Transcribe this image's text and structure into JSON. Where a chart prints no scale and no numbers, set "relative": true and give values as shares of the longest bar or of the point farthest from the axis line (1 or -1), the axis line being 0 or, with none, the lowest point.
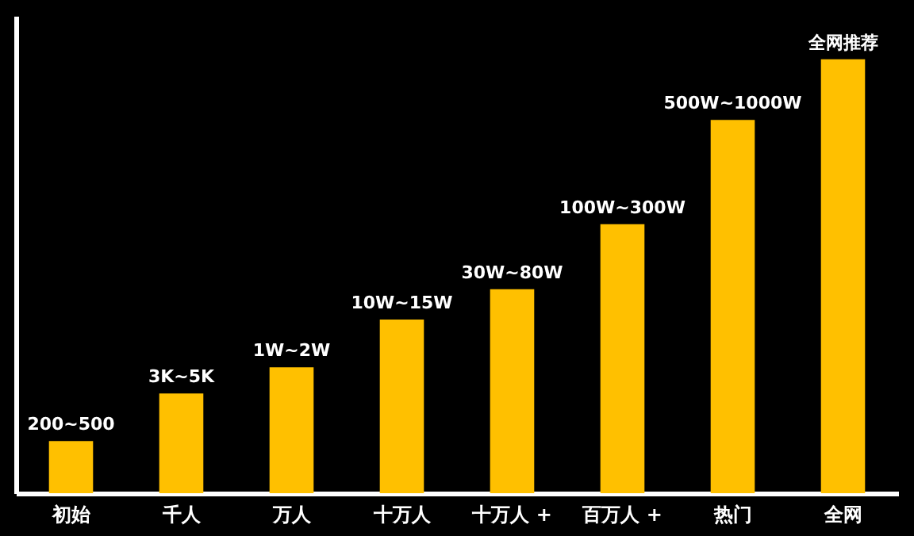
{
  "chart_data": {
    "type": "bar",
    "relative": true,
    "categories": [
      "初始",
      "千人",
      "万人",
      "十万人",
      "十万人 +",
      "百万人 +",
      "热门",
      "全网"
    ],
    "values": [
      0.12,
      0.23,
      0.29,
      0.4,
      0.47,
      0.62,
      0.86,
      1
    ],
    "annotations": [
      "200~500",
      "3K~5K",
      "1W~2W",
      "10W~15W",
      "30W~80W",
      "100W~300W",
      "500W~1000W",
      "全网推荐"
    ],
    "color": "#ffc000",
    "grid": false
  }
}
